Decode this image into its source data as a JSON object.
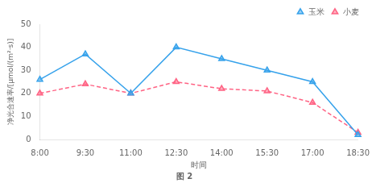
{
  "chart_data": {
    "type": "line",
    "title": "图 2",
    "x_label": "时间",
    "y_label": "净光合速率/[μmol/(m²·s)]",
    "categories": [
      "8:00",
      "9:30",
      "11:00",
      "12:30",
      "14:00",
      "15:30",
      "17:00",
      "18:30"
    ],
    "series": [
      {
        "name": "玉米",
        "values": [
          26,
          37,
          20,
          40,
          35,
          30,
          25,
          2
        ],
        "marker": "triangle",
        "line_style": "solid"
      },
      {
        "name": "小麦",
        "values": [
          20,
          24,
          20,
          25,
          22,
          21,
          16,
          3
        ],
        "marker": "triangle",
        "line_style": "dashed"
      }
    ],
    "ylim": [
      0,
      50
    ],
    "yticks": [
      0,
      10,
      20,
      30,
      40,
      50
    ],
    "grid": false,
    "legend": "upper right"
  }
}
